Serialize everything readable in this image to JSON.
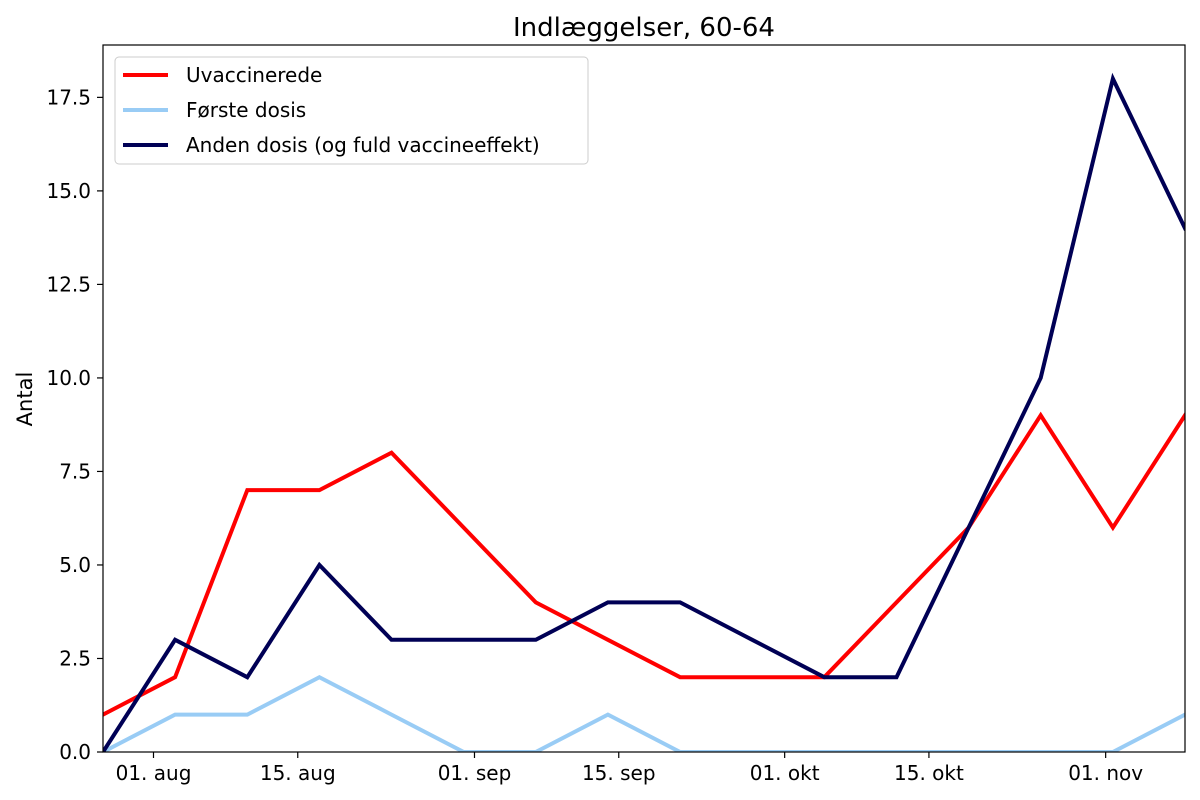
{
  "chart_data": {
    "type": "line",
    "title": "Indlæggelser, 60-64",
    "xlabel": "",
    "ylabel": "Antal",
    "x": [
      0,
      1,
      2,
      3,
      4,
      5,
      6,
      7,
      8,
      9,
      10,
      11,
      12,
      13,
      14,
      15
    ],
    "xlim": [
      0,
      15
    ],
    "ylim": [
      0,
      18.9
    ],
    "x_ticks": [
      {
        "pos": 0.7,
        "label": "01. aug"
      },
      {
        "pos": 2.7,
        "label": "15. aug"
      },
      {
        "pos": 5.15,
        "label": "01. sep"
      },
      {
        "pos": 7.15,
        "label": "15. sep"
      },
      {
        "pos": 9.45,
        "label": "01. okt"
      },
      {
        "pos": 11.45,
        "label": "15. okt"
      },
      {
        "pos": 13.9,
        "label": "01. nov"
      }
    ],
    "y_ticks": [
      0,
      2.5,
      5,
      7.5,
      10,
      12.5,
      15,
      17.5
    ],
    "y_tick_labels": [
      "0.0",
      "2.5",
      "5.0",
      "7.5",
      "10.0",
      "12.5",
      "15.0",
      "17.5"
    ],
    "legend_position": "top-left",
    "series": [
      {
        "name": "Uvaccinerede",
        "color": "#ff0000",
        "values": [
          1,
          2,
          7,
          7,
          8,
          6,
          4,
          3,
          2,
          2,
          2,
          4,
          6,
          9,
          6,
          9
        ]
      },
      {
        "name": "Første dosis",
        "color": "#99ccf5",
        "values": [
          0,
          1,
          1,
          2,
          1,
          0,
          0,
          1,
          0,
          0,
          0,
          0,
          0,
          0,
          0,
          1
        ]
      },
      {
        "name": "Anden dosis (og fuld vaccineeffekt)",
        "color": "#000055",
        "values": [
          0,
          3,
          2,
          5,
          3,
          3,
          3,
          4,
          4,
          3,
          2,
          2,
          6,
          10,
          18,
          14
        ]
      }
    ]
  }
}
